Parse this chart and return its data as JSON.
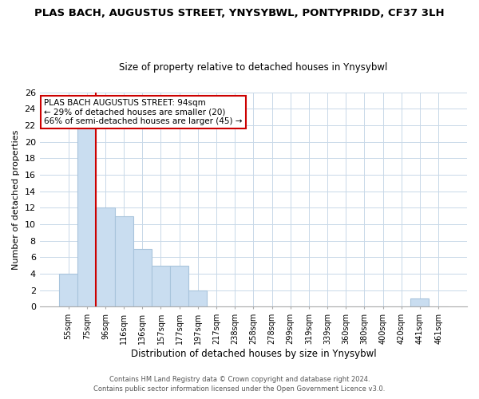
{
  "title": "PLAS BACH, AUGUSTUS STREET, YNYSYBWL, PONTYPRIDD, CF37 3LH",
  "subtitle": "Size of property relative to detached houses in Ynysybwl",
  "xlabel": "Distribution of detached houses by size in Ynysybwl",
  "ylabel": "Number of detached properties",
  "bar_labels": [
    "55sqm",
    "75sqm",
    "96sqm",
    "116sqm",
    "136sqm",
    "157sqm",
    "177sqm",
    "197sqm",
    "217sqm",
    "238sqm",
    "258sqm",
    "278sqm",
    "299sqm",
    "319sqm",
    "339sqm",
    "360sqm",
    "380sqm",
    "400sqm",
    "420sqm",
    "441sqm",
    "461sqm"
  ],
  "bar_values": [
    4,
    22,
    12,
    11,
    7,
    5,
    5,
    2,
    0,
    0,
    0,
    0,
    0,
    0,
    0,
    0,
    0,
    0,
    0,
    1,
    0
  ],
  "bar_color": "#c9ddf0",
  "bar_edge_color": "#a8c4dc",
  "vline_x": 2.0,
  "vline_color": "#cc0000",
  "ylim": [
    0,
    26
  ],
  "yticks": [
    0,
    2,
    4,
    6,
    8,
    10,
    12,
    14,
    16,
    18,
    20,
    22,
    24,
    26
  ],
  "annotation_title": "PLAS BACH AUGUSTUS STREET: 94sqm",
  "annotation_line1": "← 29% of detached houses are smaller (20)",
  "annotation_line2": "66% of semi-detached houses are larger (45) →",
  "annotation_box_color": "#ffffff",
  "annotation_box_edge_color": "#cc0000",
  "footer1": "Contains HM Land Registry data © Crown copyright and database right 2024.",
  "footer2": "Contains public sector information licensed under the Open Government Licence v3.0.",
  "background_color": "#ffffff",
  "grid_color": "#c8d8e8"
}
